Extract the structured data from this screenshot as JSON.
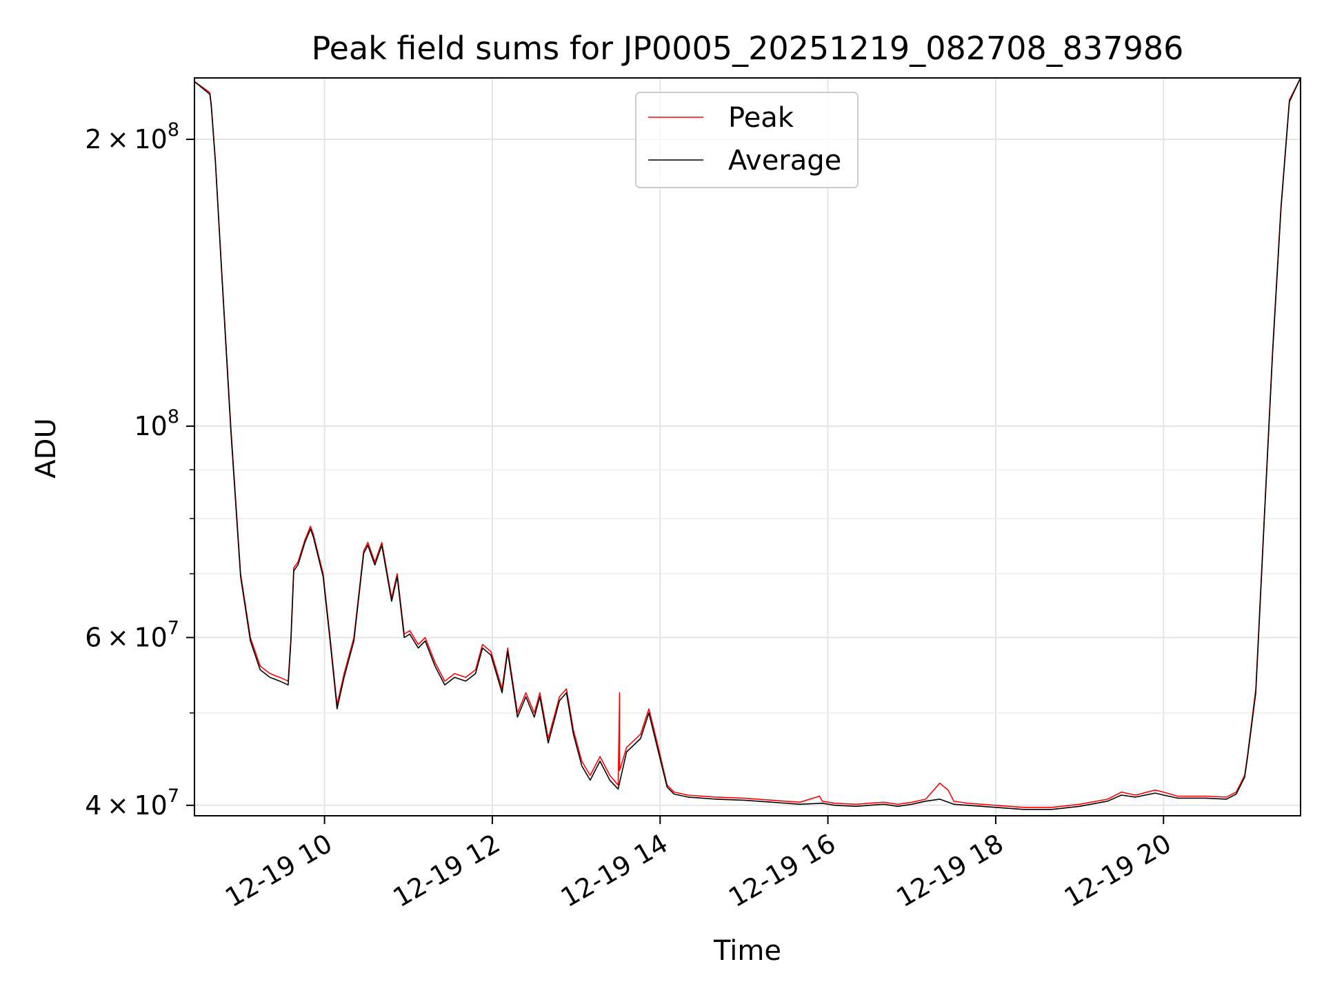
{
  "chart_data": {
    "type": "line",
    "title": "Peak field sums for JP0005_20251219_082708_837986",
    "xlabel": "Time",
    "ylabel": "ADU",
    "yscale": "log",
    "grid": true,
    "legend_placement": "upper center",
    "xlim": [
      "2025-12-19 08:27",
      "2025-12-19 21:38"
    ],
    "ylim": [
      39000000,
      232000000
    ],
    "x_ticks": [
      {
        "value": "2025-12-19 10:00",
        "label": "12-19 10"
      },
      {
        "value": "2025-12-19 12:00",
        "label": "12-19 12"
      },
      {
        "value": "2025-12-19 14:00",
        "label": "12-19 14"
      },
      {
        "value": "2025-12-19 16:00",
        "label": "12-19 16"
      },
      {
        "value": "2025-12-19 18:00",
        "label": "12-19 18"
      },
      {
        "value": "2025-12-19 20:00",
        "label": "12-19 20"
      }
    ],
    "y_ticks_major": [
      {
        "value": 40000000,
        "base": "4",
        "exp": "7"
      },
      {
        "value": 60000000,
        "base": "6",
        "exp": "7"
      },
      {
        "value": 100000000,
        "base": "",
        "exp": "8"
      },
      {
        "value": 200000000,
        "base": "2",
        "exp": "8"
      }
    ],
    "y_ticks_minor": [
      50000000,
      70000000,
      80000000,
      90000000
    ],
    "series": [
      {
        "name": "Peak",
        "color": "#ff0000",
        "x": [
          "08:27",
          "08:38",
          "08:39",
          "08:42",
          "08:46",
          "08:53",
          "09:00",
          "09:07",
          "09:14",
          "09:21",
          "09:28",
          "09:34",
          "09:36",
          "09:38",
          "09:41",
          "09:46",
          "09:50",
          "09:52",
          "09:59",
          "10:04",
          "10:09",
          "10:14",
          "10:21",
          "10:28",
          "10:31",
          "10:36",
          "10:41",
          "10:48",
          "10:52",
          "10:57",
          "11:01",
          "11:07",
          "11:12",
          "11:19",
          "11:26",
          "11:33",
          "11:41",
          "11:48",
          "11:53",
          "11:59",
          "12:07",
          "12:11",
          "12:18",
          "12:24",
          "12:30",
          "12:34",
          "12:40",
          "12:48",
          "12:53",
          "12:58",
          "13:04",
          "13:10",
          "13:17",
          "13:24",
          "13:30",
          "13:31",
          "13:31",
          "13:36",
          "13:46",
          "13:52",
          "13:58",
          "14:05",
          "14:10",
          "14:20",
          "14:40",
          "15:00",
          "15:20",
          "15:40",
          "15:54",
          "15:56",
          "16:05",
          "16:20",
          "16:40",
          "16:50",
          "17:00",
          "17:10",
          "17:20",
          "17:26",
          "17:30",
          "17:40",
          "18:00",
          "18:20",
          "18:40",
          "19:00",
          "19:20",
          "19:30",
          "19:40",
          "19:54",
          "20:00",
          "20:10",
          "20:30",
          "20:45",
          "20:52",
          "20:58",
          "21:00",
          "21:06",
          "21:12",
          "21:18",
          "21:24",
          "21:30",
          "21:38"
        ],
        "values": [
          230000000,
          224000000,
          218000000,
          190000000,
          150000000,
          100000000,
          70000000,
          60000000,
          56000000,
          55000000,
          54500000,
          54000000,
          60000000,
          71000000,
          72000000,
          76000000,
          78500000,
          77000000,
          70000000,
          60000000,
          51000000,
          55000000,
          60000000,
          74000000,
          75500000,
          72000000,
          75500000,
          66000000,
          70000000,
          60500000,
          61000000,
          59000000,
          60000000,
          56500000,
          54000000,
          55000000,
          54500000,
          55500000,
          59000000,
          58000000,
          53000000,
          58500000,
          50000000,
          52500000,
          50000000,
          52500000,
          47000000,
          52000000,
          53000000,
          48000000,
          44500000,
          43000000,
          45000000,
          43000000,
          42000000,
          52500000,
          43500000,
          46000000,
          47500000,
          50500000,
          46500000,
          42000000,
          41300000,
          41000000,
          40800000,
          40700000,
          40500000,
          40300000,
          40900000,
          40400000,
          40200000,
          40100000,
          40300000,
          40100000,
          40300000,
          40600000,
          42200000,
          41500000,
          40400000,
          40200000,
          40000000,
          39800000,
          39800000,
          40100000,
          40600000,
          41300000,
          41000000,
          41500000,
          41300000,
          40900000,
          40900000,
          40800000,
          41300000,
          43000000,
          45000000,
          53000000,
          80000000,
          120000000,
          170000000,
          220000000,
          232000000
        ]
      },
      {
        "name": "Average",
        "color": "#000000",
        "x": [
          "08:27",
          "08:38",
          "08:39",
          "08:42",
          "08:46",
          "08:53",
          "09:00",
          "09:07",
          "09:14",
          "09:21",
          "09:28",
          "09:34",
          "09:36",
          "09:38",
          "09:41",
          "09:46",
          "09:50",
          "09:52",
          "09:59",
          "10:04",
          "10:09",
          "10:14",
          "10:21",
          "10:28",
          "10:31",
          "10:36",
          "10:41",
          "10:48",
          "10:52",
          "10:57",
          "11:01",
          "11:07",
          "11:12",
          "11:19",
          "11:26",
          "11:33",
          "11:41",
          "11:48",
          "11:53",
          "11:59",
          "12:07",
          "12:11",
          "12:18",
          "12:24",
          "12:30",
          "12:34",
          "12:40",
          "12:48",
          "12:53",
          "12:58",
          "13:04",
          "13:10",
          "13:17",
          "13:24",
          "13:30",
          "13:36",
          "13:46",
          "13:52",
          "13:58",
          "14:05",
          "14:10",
          "14:20",
          "14:40",
          "15:00",
          "15:20",
          "15:40",
          "15:56",
          "16:05",
          "16:20",
          "16:40",
          "16:50",
          "17:00",
          "17:10",
          "17:20",
          "17:30",
          "17:40",
          "18:00",
          "18:20",
          "18:40",
          "19:00",
          "19:20",
          "19:30",
          "19:40",
          "19:54",
          "20:00",
          "20:10",
          "20:30",
          "20:45",
          "20:52",
          "20:58",
          "21:00",
          "21:06",
          "21:12",
          "21:18",
          "21:24",
          "21:30",
          "21:38"
        ],
        "values": [
          230000000,
          223000000,
          217000000,
          189000000,
          149000000,
          99000000,
          69500000,
          59500000,
          55500000,
          54500000,
          54000000,
          53500000,
          59500000,
          70500000,
          71500000,
          75500000,
          78000000,
          76500000,
          69500000,
          59500000,
          50500000,
          54500000,
          59500000,
          73500000,
          75000000,
          71500000,
          75000000,
          65500000,
          69500000,
          60000000,
          60500000,
          58500000,
          59500000,
          56000000,
          53500000,
          54500000,
          54000000,
          55000000,
          58500000,
          57500000,
          52500000,
          58000000,
          49500000,
          52000000,
          49500000,
          52000000,
          46500000,
          51500000,
          52500000,
          47500000,
          44000000,
          42500000,
          44500000,
          42500000,
          41600000,
          45500000,
          47000000,
          50000000,
          46000000,
          41800000,
          41100000,
          40800000,
          40600000,
          40500000,
          40300000,
          40100000,
          40200000,
          40000000,
          39900000,
          40100000,
          39900000,
          40100000,
          40400000,
          40600000,
          40100000,
          40000000,
          39800000,
          39600000,
          39600000,
          39900000,
          40400000,
          41000000,
          40800000,
          41200000,
          41000000,
          40700000,
          40700000,
          40600000,
          41100000,
          42800000,
          44800000,
          52500000,
          79500000,
          119000000,
          169000000,
          219000000,
          232000000
        ]
      }
    ]
  }
}
